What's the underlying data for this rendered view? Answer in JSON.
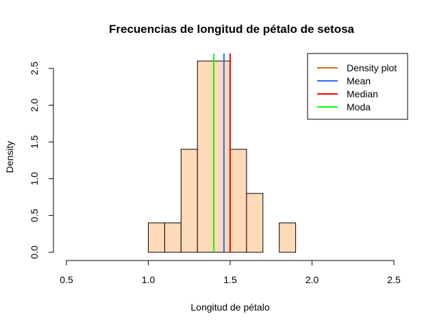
{
  "chart_data": {
    "type": "bar",
    "title": "Frecuencias de longitud de pétalo de setosa",
    "xlabel": "Longitud de pétalo",
    "ylabel": "Density",
    "xlim": [
      0.5,
      2.5
    ],
    "ylim": [
      0,
      2.6
    ],
    "x_ticks": [
      0.5,
      1.0,
      1.5,
      2.0,
      2.5
    ],
    "x_tick_labels": [
      "0.5",
      "1.0",
      "1.5",
      "2.0",
      "2.5"
    ],
    "y_ticks": [
      0.0,
      0.5,
      1.0,
      1.5,
      2.0,
      2.5
    ],
    "y_tick_labels": [
      "0.0",
      "0.5",
      "1.0",
      "1.5",
      "2.0",
      "2.5"
    ],
    "bin_width": 0.1,
    "bins": [
      {
        "start": 1.0,
        "end": 1.1,
        "value": 0.4
      },
      {
        "start": 1.1,
        "end": 1.2,
        "value": 0.4
      },
      {
        "start": 1.2,
        "end": 1.3,
        "value": 1.4
      },
      {
        "start": 1.3,
        "end": 1.4,
        "value": 2.6
      },
      {
        "start": 1.4,
        "end": 1.5,
        "value": 2.6
      },
      {
        "start": 1.5,
        "end": 1.6,
        "value": 1.4
      },
      {
        "start": 1.6,
        "end": 1.7,
        "value": 0.8
      },
      {
        "start": 1.7,
        "end": 1.8,
        "value": 0.0
      },
      {
        "start": 1.8,
        "end": 1.9,
        "value": 0.4
      }
    ],
    "bar_color": "#FFDAB9",
    "vertical_lines": [
      {
        "name": "Moda",
        "x": 1.4,
        "color": "#00FF00"
      },
      {
        "name": "Mean",
        "x": 1.462,
        "color": "#3366FF"
      },
      {
        "name": "Median",
        "x": 1.5,
        "color": "#FF0000"
      }
    ],
    "legend": {
      "position": "top-right",
      "entries": [
        {
          "name": "Density plot",
          "color": "#D2691E"
        },
        {
          "name": "Mean",
          "color": "#3366FF"
        },
        {
          "name": "Median",
          "color": "#FF0000"
        },
        {
          "name": "Moda",
          "color": "#00FF00"
        }
      ]
    },
    "grid": false
  }
}
